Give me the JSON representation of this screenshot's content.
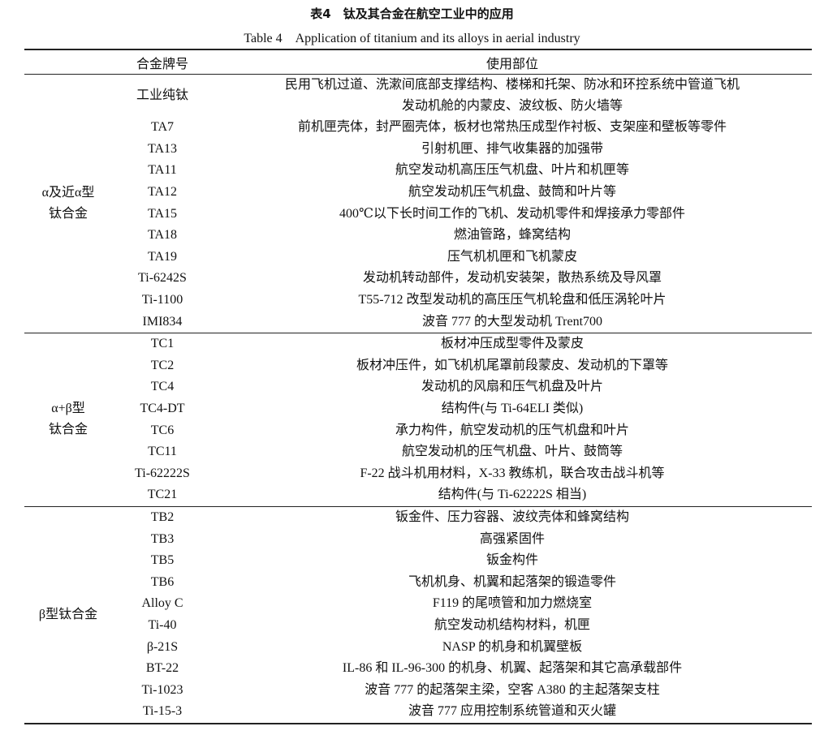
{
  "title": "表4　钛及其合金在航空工业中的应用",
  "subtitle": "Table 4　Application of titanium and its alloys in aerial industry",
  "headers": {
    "group": "",
    "alloy": "合金牌号",
    "usage": "使用部位"
  },
  "groups": [
    {
      "label_1": "α及近α型",
      "label_2": "钛合金",
      "rows": [
        {
          "alloy": "工业纯钛",
          "usage_1": "民用飞机过道、洗漱间底部支撑结构、楼梯和托架、防冰和环控系统中管道飞机",
          "usage_2": "发动机舱的内蒙皮、波纹板、防火墙等"
        },
        {
          "alloy": "TA7",
          "usage": "前机匣壳体，封严圈壳体，板材也常热压成型作衬板、支架座和壁板等零件"
        },
        {
          "alloy": "TA13",
          "usage": "引射机匣、排气收集器的加强带"
        },
        {
          "alloy": "TA11",
          "usage": "航空发动机高压压气机盘、叶片和机匣等"
        },
        {
          "alloy": "TA12",
          "usage": "航空发动机压气机盘、鼓筒和叶片等"
        },
        {
          "alloy": "TA15",
          "usage": "400℃以下长时间工作的飞机、发动机零件和焊接承力零部件"
        },
        {
          "alloy": "TA18",
          "usage": "燃油管路，蜂窝结构"
        },
        {
          "alloy": "TA19",
          "usage": "压气机机匣和飞机蒙皮"
        },
        {
          "alloy": "Ti-6242S",
          "usage": "发动机转动部件，发动机安装架，散热系统及导风罩"
        },
        {
          "alloy": "Ti-1100",
          "usage": "T55-712 改型发动机的高压压气机轮盘和低压涡轮叶片"
        },
        {
          "alloy": "IMI834",
          "usage": "波音 777 的大型发动机 Trent700"
        }
      ]
    },
    {
      "label_1": "α+β型",
      "label_2": "钛合金",
      "rows": [
        {
          "alloy": "TC1",
          "usage": "板材冲压成型零件及蒙皮"
        },
        {
          "alloy": "TC2",
          "usage": "板材冲压件，如飞机机尾罩前段蒙皮、发动机的下罩等"
        },
        {
          "alloy": "TC4",
          "usage": "发动机的风扇和压气机盘及叶片"
        },
        {
          "alloy": "TC4-DT",
          "usage": "结构件(与 Ti-64ELI 类似)"
        },
        {
          "alloy": "TC6",
          "usage": "承力构件，航空发动机的压气机盘和叶片"
        },
        {
          "alloy": "TC11",
          "usage": "航空发动机的压气机盘、叶片、鼓筒等"
        },
        {
          "alloy": "Ti-62222S",
          "usage": "F-22 战斗机用材料，X-33 教练机，联合攻击战斗机等"
        },
        {
          "alloy": "TC21",
          "usage": "结构件(与 Ti-62222S 相当)"
        }
      ]
    },
    {
      "label_1": "β型钛合金",
      "label_2": "",
      "rows": [
        {
          "alloy": "TB2",
          "usage": "钣金件、压力容器、波纹壳体和蜂窝结构"
        },
        {
          "alloy": "TB3",
          "usage": "高强紧固件"
        },
        {
          "alloy": "TB5",
          "usage": "钣金构件"
        },
        {
          "alloy": "TB6",
          "usage": "飞机机身、机翼和起落架的锻造零件"
        },
        {
          "alloy": "Alloy C",
          "usage": "F119 的尾喷管和加力燃烧室"
        },
        {
          "alloy": "Ti-40",
          "usage": "航空发动机结构材料，机匣"
        },
        {
          "alloy": "β-21S",
          "usage": "NASP 的机身和机翼壁板"
        },
        {
          "alloy": "BT-22",
          "usage": "IL-86 和 IL-96-300 的机身、机翼、起落架和其它高承载部件"
        },
        {
          "alloy": "Ti-1023",
          "usage": "波音 777 的起落架主梁，空客 A380 的主起落架支柱"
        },
        {
          "alloy": "Ti-15-3",
          "usage": "波音 777 应用控制系统管道和灭火罐"
        }
      ]
    }
  ]
}
